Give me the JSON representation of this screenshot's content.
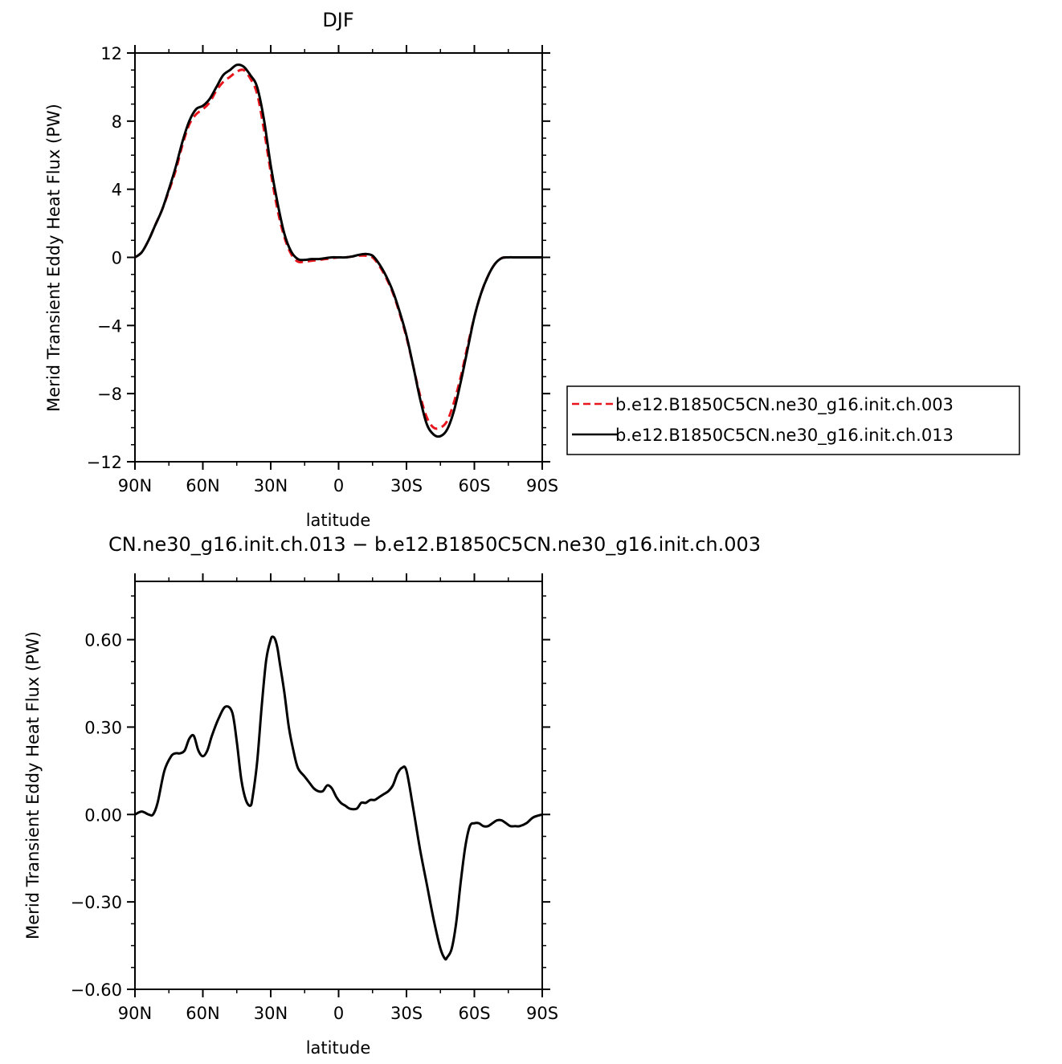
{
  "chart_data": [
    {
      "type": "line",
      "title": "DJF",
      "xlabel": "latitude",
      "ylabel": "Merid Transient Eddy Heat Flux (PW)",
      "xlim": [
        90,
        -90
      ],
      "ylim": [
        -12,
        12
      ],
      "xticks": [
        90,
        60,
        30,
        0,
        -30,
        -60,
        -90
      ],
      "xtick_labels": [
        "90N",
        "60N",
        "30N",
        "0",
        "30S",
        "60S",
        "90S"
      ],
      "yticks": [
        -12,
        -8,
        -4,
        0,
        4,
        8,
        12
      ],
      "ytick_labels": [
        "−12",
        "−8",
        "−4",
        "0",
        "4",
        "8",
        "12"
      ],
      "grid": false,
      "legend_position": "right",
      "series": [
        {
          "name": "b.e12.B1850C5CN.ne30_g16.init.ch.003",
          "color": "#e8161c",
          "style": "dashed",
          "x": [
            90,
            87,
            84,
            81,
            78,
            75,
            72,
            69,
            66,
            63,
            60,
            57,
            54,
            51,
            48,
            45,
            42,
            39,
            36,
            33,
            30,
            27,
            24,
            21,
            18,
            15,
            12,
            9,
            6,
            3,
            0,
            -3,
            -6,
            -9,
            -12,
            -15,
            -18,
            -21,
            -24,
            -27,
            -30,
            -33,
            -36,
            -39,
            -42,
            -45,
            -48,
            -51,
            -54,
            -57,
            -60,
            -63,
            -66,
            -69,
            -72,
            -75,
            -78,
            -81,
            -84,
            -87,
            -90
          ],
          "values": [
            0.0,
            0.3,
            1.0,
            1.9,
            2.8,
            3.9,
            5.1,
            6.6,
            7.8,
            8.4,
            8.7,
            9.1,
            9.8,
            10.3,
            10.6,
            10.9,
            11.0,
            10.5,
            9.6,
            7.5,
            5.0,
            2.8,
            1.2,
            0.2,
            -0.25,
            -0.25,
            -0.2,
            -0.15,
            -0.1,
            -0.05,
            0.0,
            0.0,
            0.05,
            0.1,
            0.1,
            0.0,
            -0.5,
            -1.2,
            -2.1,
            -3.3,
            -4.7,
            -6.4,
            -8.1,
            -9.4,
            -10.0,
            -10.0,
            -9.6,
            -8.5,
            -7.0,
            -5.2,
            -3.5,
            -2.1,
            -1.1,
            -0.4,
            -0.05,
            0.0,
            0.0,
            0.0,
            0.0,
            0.0,
            0.0
          ]
        },
        {
          "name": "b.e12.B1850C5CN.ne30_g16.init.ch.013",
          "color": "#000000",
          "style": "solid",
          "x": [
            90,
            87,
            84,
            81,
            78,
            75,
            72,
            69,
            66,
            63,
            60,
            57,
            54,
            51,
            48,
            45,
            42,
            39,
            36,
            33,
            30,
            27,
            24,
            21,
            18,
            15,
            12,
            9,
            6,
            3,
            0,
            -3,
            -6,
            -9,
            -12,
            -15,
            -18,
            -21,
            -24,
            -27,
            -30,
            -33,
            -36,
            -39,
            -42,
            -45,
            -48,
            -51,
            -54,
            -57,
            -60,
            -63,
            -66,
            -69,
            -72,
            -75,
            -78,
            -81,
            -84,
            -87,
            -90
          ],
          "values": [
            0.0,
            0.3,
            1.0,
            1.9,
            2.8,
            4.0,
            5.3,
            6.8,
            8.0,
            8.7,
            8.9,
            9.3,
            10.0,
            10.7,
            11.0,
            11.3,
            11.2,
            10.7,
            10.0,
            8.1,
            5.4,
            3.2,
            1.4,
            0.35,
            -0.1,
            -0.15,
            -0.1,
            -0.1,
            -0.05,
            0.0,
            0.0,
            0.0,
            0.05,
            0.15,
            0.2,
            0.1,
            -0.4,
            -1.1,
            -2.0,
            -3.2,
            -4.6,
            -6.4,
            -8.3,
            -9.8,
            -10.4,
            -10.5,
            -10.1,
            -9.0,
            -7.3,
            -5.4,
            -3.5,
            -2.1,
            -1.1,
            -0.4,
            -0.05,
            0.0,
            0.0,
            0.0,
            0.0,
            0.0,
            0.0
          ]
        }
      ]
    },
    {
      "type": "line",
      "title": "CN.ne30_g16.init.ch.013 − b.e12.B1850C5CN.ne30_g16.init.ch.003",
      "xlabel": "latitude",
      "ylabel": "Merid Transient Eddy Heat Flux (PW)",
      "xlim": [
        90,
        -90
      ],
      "ylim": [
        -0.6,
        0.8
      ],
      "xticks": [
        90,
        60,
        30,
        0,
        -30,
        -60,
        -90
      ],
      "xtick_labels": [
        "90N",
        "60N",
        "30N",
        "0",
        "30S",
        "60S",
        "90S"
      ],
      "yticks": [
        -0.6,
        -0.3,
        0.0,
        0.3,
        0.6
      ],
      "ytick_labels": [
        "−0.60",
        "−0.30",
        "0.00",
        "0.30",
        "0.60"
      ],
      "grid": false,
      "series": [
        {
          "color": "#000000",
          "style": "solid",
          "x": [
            90,
            87,
            84,
            82,
            80,
            77,
            74,
            72,
            70,
            68,
            66,
            64,
            62,
            60,
            58,
            56,
            53,
            50,
            47,
            45,
            43,
            41,
            39,
            38,
            36,
            34,
            32,
            30,
            29,
            28,
            27,
            26,
            24,
            22,
            20,
            18,
            15,
            13,
            11,
            9,
            7,
            5,
            3,
            1,
            -1,
            -3,
            -5,
            -8,
            -10,
            -12,
            -14,
            -16,
            -18,
            -20,
            -22,
            -24,
            -26,
            -28,
            -30,
            -33,
            -36,
            -39,
            -42,
            -45,
            -47,
            -48,
            -50,
            -52,
            -54,
            -56,
            -58,
            -60,
            -62,
            -64,
            -66,
            -68,
            -70,
            -72,
            -74,
            -76,
            -78,
            -80,
            -83,
            -86,
            -90
          ],
          "values": [
            0.0,
            0.01,
            0.0,
            0.0,
            0.04,
            0.15,
            0.2,
            0.21,
            0.21,
            0.22,
            0.26,
            0.27,
            0.22,
            0.2,
            0.22,
            0.27,
            0.33,
            0.37,
            0.35,
            0.25,
            0.12,
            0.05,
            0.03,
            0.06,
            0.18,
            0.37,
            0.53,
            0.6,
            0.61,
            0.6,
            0.57,
            0.52,
            0.42,
            0.3,
            0.22,
            0.16,
            0.13,
            0.11,
            0.09,
            0.08,
            0.08,
            0.1,
            0.09,
            0.06,
            0.04,
            0.03,
            0.02,
            0.02,
            0.04,
            0.04,
            0.05,
            0.05,
            0.06,
            0.07,
            0.08,
            0.1,
            0.14,
            0.16,
            0.15,
            0.02,
            -0.12,
            -0.24,
            -0.36,
            -0.46,
            -0.495,
            -0.49,
            -0.46,
            -0.37,
            -0.23,
            -0.11,
            -0.04,
            -0.03,
            -0.03,
            -0.04,
            -0.04,
            -0.03,
            -0.02,
            -0.02,
            -0.03,
            -0.04,
            -0.04,
            -0.04,
            -0.03,
            -0.01,
            0.0
          ]
        }
      ]
    }
  ]
}
